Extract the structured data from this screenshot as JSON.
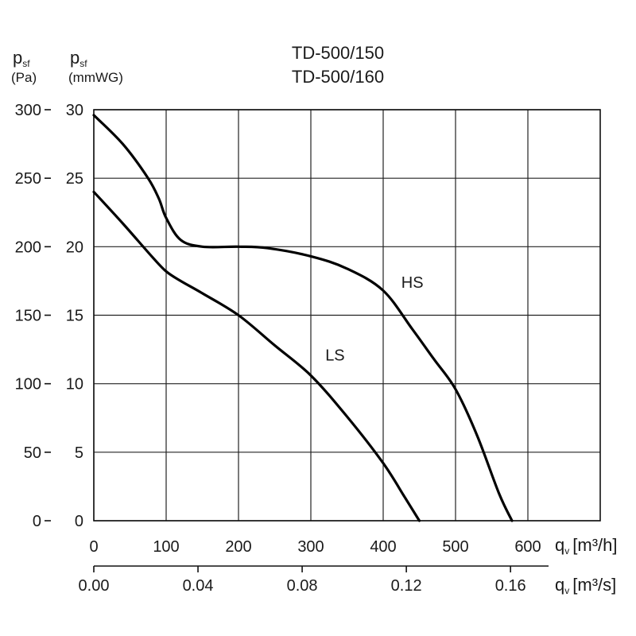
{
  "chart_data": {
    "type": "line",
    "title_lines": [
      "TD-500/150",
      "TD-500/160"
    ],
    "y_left": {
      "label": "p",
      "label_sub": "sf",
      "unit": "(Pa)",
      "range": [
        0,
        300
      ],
      "ticks": [
        0,
        50,
        100,
        150,
        200,
        250,
        300
      ]
    },
    "y_right": {
      "label": "p",
      "label_sub": "sf",
      "unit": "(mmWG)",
      "range": [
        0,
        30
      ],
      "ticks": [
        0,
        5,
        10,
        15,
        20,
        25,
        30
      ]
    },
    "x_primary": {
      "label": "q",
      "label_sub": "v",
      "unit": "[m³/h]",
      "range": [
        0,
        700
      ],
      "ticks": [
        0,
        100,
        200,
        300,
        400,
        500,
        600
      ]
    },
    "x_secondary": {
      "label": "q",
      "label_sub": "v",
      "unit": "[m³/s]",
      "tick_values": [
        0,
        0.04,
        0.08,
        0.12,
        0.16
      ],
      "tick_labels": [
        "0.00",
        "0.04",
        "0.08",
        "0.12",
        "0.16"
      ],
      "m3h_per_unit": 3600
    },
    "grid": true,
    "series": [
      {
        "name": "HS",
        "x": [
          0,
          40,
          75,
          90,
          100,
          120,
          150,
          200,
          240,
          300,
          350,
          400,
          440,
          470,
          500,
          530,
          560,
          578
        ],
        "y": [
          296,
          275,
          250,
          235,
          221,
          205,
          200,
          200,
          199,
          193,
          184,
          168,
          140,
          118,
          96,
          62,
          20,
          0
        ]
      },
      {
        "name": "LS",
        "x": [
          0,
          40,
          80,
          100,
          120,
          150,
          200,
          250,
          300,
          350,
          400,
          430,
          450
        ],
        "y": [
          240,
          217,
          193,
          182,
          175,
          166,
          150,
          128,
          106,
          76,
          42,
          17,
          0
        ]
      }
    ],
    "annotations": [
      {
        "text": "HS",
        "x": 425,
        "y": 170
      },
      {
        "text": "LS",
        "x": 320,
        "y": 117
      }
    ]
  }
}
